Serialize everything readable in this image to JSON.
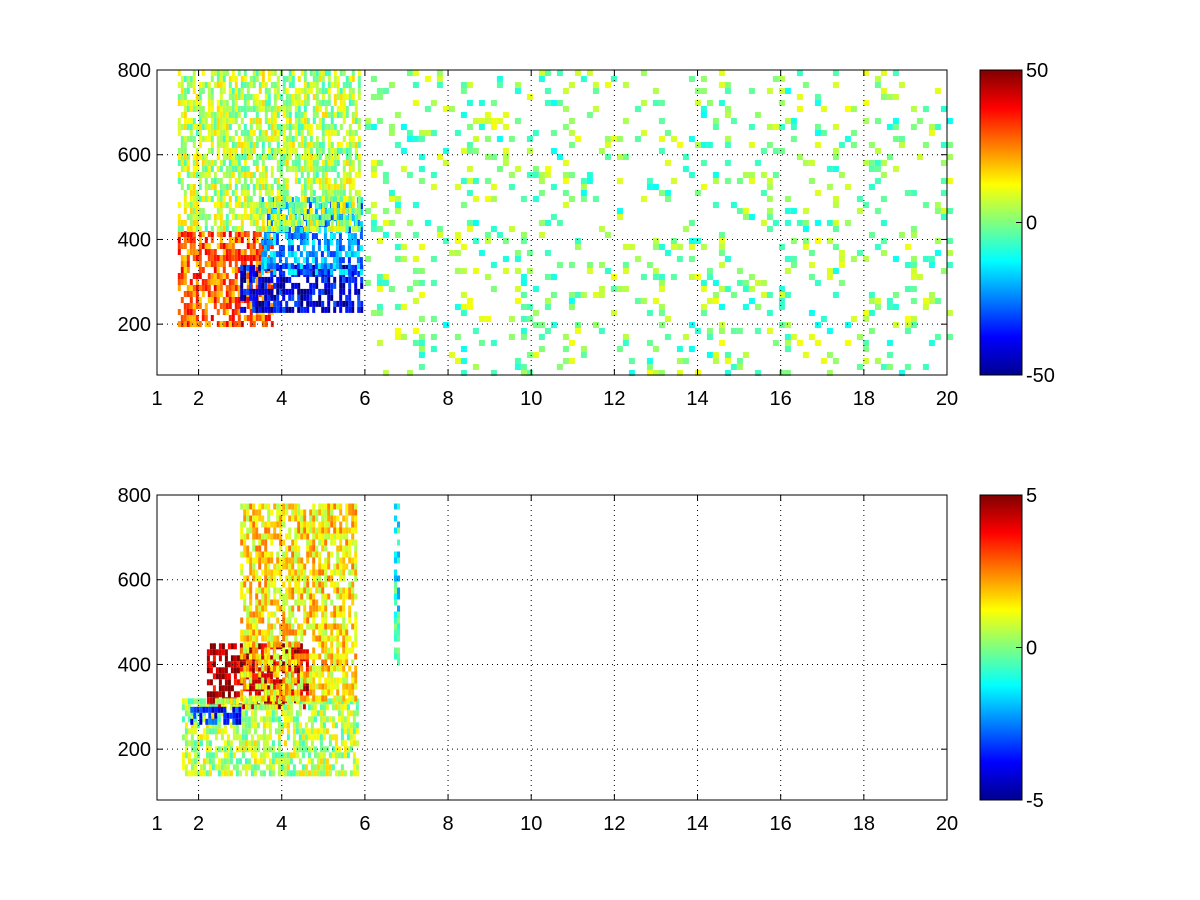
{
  "chart_data": [
    {
      "type": "heatmap",
      "title": "",
      "xlabel": "",
      "ylabel": "",
      "xlim": [
        1,
        20
      ],
      "ylim": [
        80,
        800
      ],
      "xticks": [
        1,
        2,
        4,
        6,
        8,
        10,
        12,
        14,
        16,
        18,
        20
      ],
      "xtick_labels": [
        "1",
        "2",
        "4",
        "6",
        "8",
        "10",
        "12",
        "14",
        "16",
        "18",
        "20"
      ],
      "yticks": [
        200,
        400,
        600,
        800
      ],
      "ytick_labels": [
        "200",
        "400",
        "600",
        "800"
      ],
      "grid": true,
      "colormap": "jet",
      "clim": [
        -50,
        50
      ],
      "colorbar_ticks": [
        50,
        0,
        -50
      ],
      "colorbar_labels": [
        "50",
        "0",
        "-50"
      ],
      "regions": [
        {
          "x": [
            1.5,
            3.8
          ],
          "y": [
            200,
            420
          ],
          "value": 28
        },
        {
          "x": [
            3.0,
            5.9
          ],
          "y": [
            230,
            340
          ],
          "value": -40
        },
        {
          "x": [
            3.5,
            5.9
          ],
          "y": [
            320,
            500
          ],
          "value": -22
        },
        {
          "x": [
            1.5,
            5.9
          ],
          "y": [
            420,
            800
          ],
          "value": 5
        },
        {
          "x": [
            6.0,
            20.0
          ],
          "y": [
            80,
            800
          ],
          "value": 0
        }
      ]
    },
    {
      "type": "heatmap",
      "title": "",
      "xlabel": "",
      "ylabel": "",
      "xlim": [
        1,
        20
      ],
      "ylim": [
        80,
        800
      ],
      "xticks": [
        1,
        2,
        4,
        6,
        8,
        10,
        12,
        14,
        16,
        18,
        20
      ],
      "xtick_labels": [
        "1",
        "2",
        "4",
        "6",
        "8",
        "10",
        "12",
        "14",
        "16",
        "18",
        "20"
      ],
      "yticks": [
        200,
        400,
        600,
        800
      ],
      "ytick_labels": [
        "200",
        "400",
        "600",
        "800"
      ],
      "grid": true,
      "colormap": "jet",
      "clim": [
        -5,
        5
      ],
      "colorbar_ticks": [
        5,
        0,
        -5
      ],
      "colorbar_labels": [
        "5",
        "0",
        "-5"
      ],
      "regions": [
        {
          "x": [
            2.2,
            4.6
          ],
          "y": [
            300,
            450
          ],
          "value": 4.5
        },
        {
          "x": [
            1.6,
            5.8
          ],
          "y": [
            150,
            320
          ],
          "value": 0.5
        },
        {
          "x": [
            3.0,
            5.8
          ],
          "y": [
            320,
            780
          ],
          "value": 1.5
        },
        {
          "x": [
            1.8,
            3.0
          ],
          "y": [
            260,
            300
          ],
          "value": -3.5
        },
        {
          "x": [
            6.7,
            6.8
          ],
          "y": [
            400,
            780
          ],
          "value": -1
        }
      ]
    }
  ]
}
